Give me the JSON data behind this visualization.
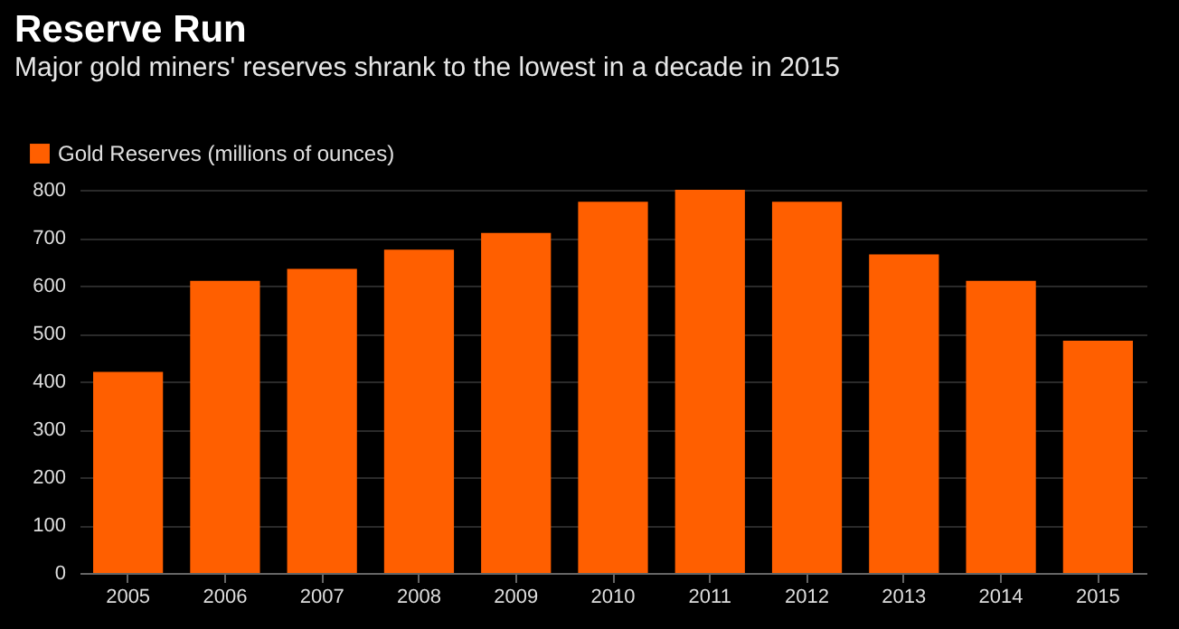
{
  "chart_data": {
    "type": "bar",
    "title": "Reserve Run",
    "subtitle": "Major gold miners' reserves shrank to the lowest in a decade in 2015",
    "categories": [
      "2005",
      "2006",
      "2007",
      "2008",
      "2009",
      "2010",
      "2011",
      "2012",
      "2013",
      "2014",
      "2015"
    ],
    "series": [
      {
        "name": "Gold Reserves (millions of ounces)",
        "color": "#ff5f00",
        "values": [
          420,
          610,
          635,
          675,
          710,
          775,
          800,
          775,
          665,
          610,
          485
        ]
      }
    ],
    "ylim": [
      0,
      800
    ],
    "yticks": [
      0,
      100,
      200,
      300,
      400,
      500,
      600,
      700,
      800
    ],
    "grid": "y",
    "legend": "top left"
  }
}
